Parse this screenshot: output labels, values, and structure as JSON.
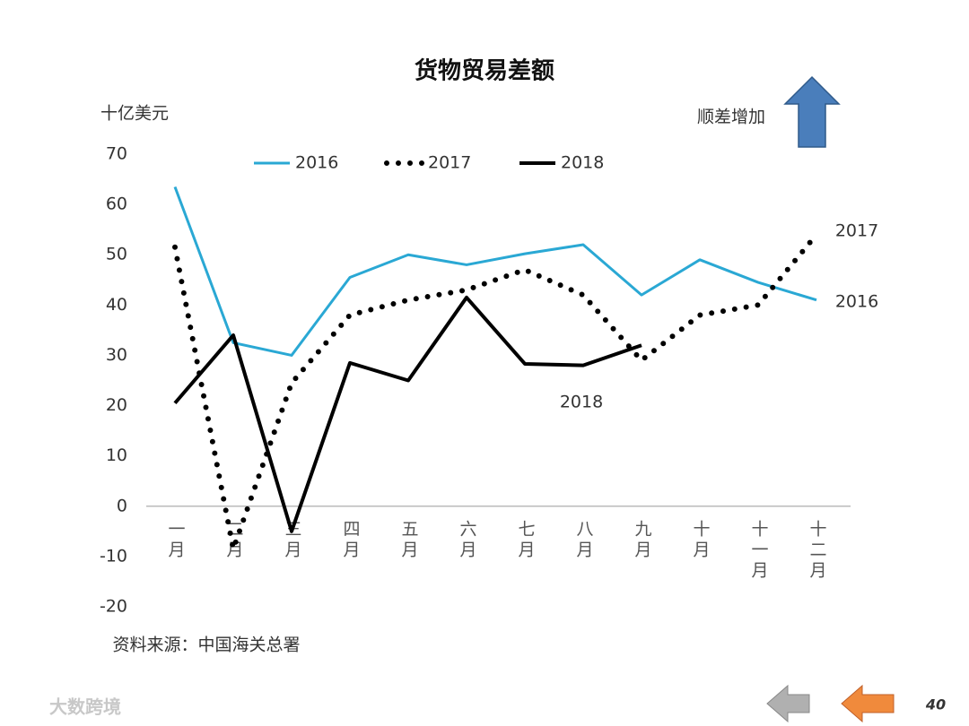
{
  "chart_data": {
    "type": "line",
    "title": "货物贸易差额",
    "unit": "十亿美元",
    "note": "顺差增加",
    "source": "资料来源：中国海关总署",
    "page_number": "40",
    "watermark": "大数跨境",
    "categories": [
      "一月",
      "二月",
      "三月",
      "四月",
      "五月",
      "六月",
      "七月",
      "八月",
      "九月",
      "十月",
      "十一月",
      "十二月"
    ],
    "series": [
      {
        "name": "2016",
        "color": "#2aa8d4",
        "style": "solid",
        "values": [
          63.5,
          32.5,
          30,
          45.5,
          50,
          48,
          50.2,
          52,
          42,
          49,
          44.5,
          41
        ]
      },
      {
        "name": "2017",
        "color": "#000000",
        "style": "dotted",
        "values": [
          51.5,
          -8.5,
          24.5,
          38,
          41,
          43,
          47,
          42,
          29,
          38,
          40,
          54
        ]
      },
      {
        "name": "2018",
        "color": "#000000",
        "style": "solid",
        "values": [
          20.5,
          34,
          -5,
          28.5,
          25,
          41.5,
          28.3,
          28,
          32,
          null,
          null,
          null
        ]
      }
    ],
    "annotations": [
      "2017",
      "2016",
      "2018"
    ],
    "ylim": [
      -20,
      70
    ],
    "yticks": [
      -20,
      -10,
      0,
      10,
      20,
      30,
      40,
      50,
      60,
      70
    ],
    "grid": false
  }
}
